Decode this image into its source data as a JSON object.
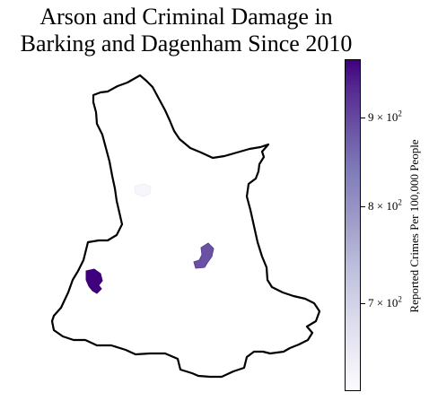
{
  "title_line1": "Arson and Criminal Damage in",
  "title_line2": "Barking and Dagenham Since 2010",
  "colorbar": {
    "label": "Reported Crimes Per 100,000 People",
    "scale": "log",
    "colormap": "Purples",
    "ticks": [
      {
        "base": "9 × 10",
        "exp": "2",
        "value": 900
      },
      {
        "base": "8 × 10",
        "exp": "2",
        "value": 800
      },
      {
        "base": "7 × 10",
        "exp": "2",
        "value": 700
      }
    ],
    "range": [
      615,
      965
    ]
  },
  "map": {
    "region": "Barking and Dagenham",
    "outline_color": "#000000",
    "highlighted_areas": [
      {
        "name": "west-area",
        "color": "#3f007d",
        "value": 960
      },
      {
        "name": "east-area",
        "color": "#6a51a3",
        "value": 880
      },
      {
        "name": "north-area",
        "color": "#f7f6fa",
        "value": 625
      }
    ]
  }
}
